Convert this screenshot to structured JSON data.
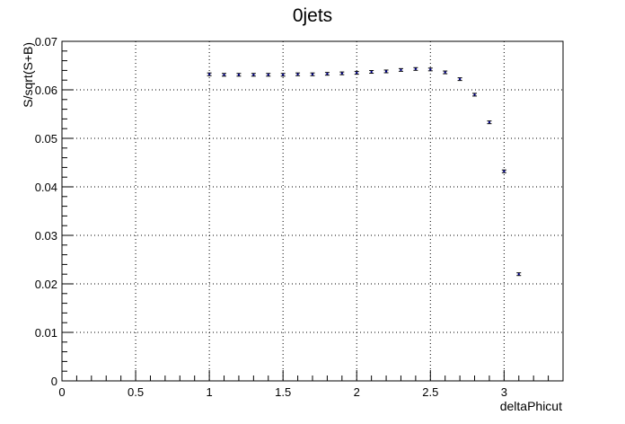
{
  "chart_data": {
    "type": "scatter",
    "title": "0jets",
    "xlabel": "deltaPhicut",
    "ylabel": "S/sqrt(S+B)",
    "xlim": [
      0,
      3.4
    ],
    "ylim": [
      0,
      0.07
    ],
    "grid": true,
    "x_ticks": [
      "0",
      "0.5",
      "1",
      "1.5",
      "2",
      "2.5",
      "3"
    ],
    "y_ticks": [
      "0",
      "0.01",
      "0.02",
      "0.03",
      "0.04",
      "0.05",
      "0.06",
      "0.07"
    ],
    "marker_color": "#00008b",
    "series": [
      {
        "x": [
          1.0,
          1.1,
          1.2,
          1.3,
          1.4,
          1.5,
          1.6,
          1.7,
          1.8,
          1.9,
          2.0,
          2.1,
          2.2,
          2.3,
          2.4,
          2.5,
          2.6,
          2.7,
          2.8,
          2.9,
          3.0,
          3.1
        ],
        "y": [
          0.0632,
          0.0631,
          0.0631,
          0.0631,
          0.0631,
          0.0631,
          0.0632,
          0.0632,
          0.0633,
          0.0634,
          0.0635,
          0.0637,
          0.0638,
          0.0641,
          0.0643,
          0.0642,
          0.0636,
          0.0622,
          0.059,
          0.0533,
          0.0432,
          0.022
        ]
      }
    ]
  }
}
